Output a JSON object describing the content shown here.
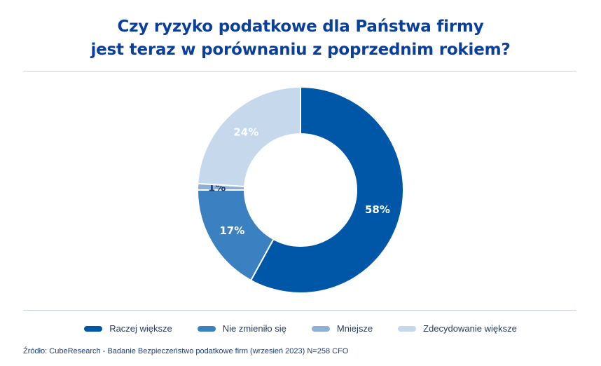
{
  "title_lines": [
    "Czy ryzyko podatkowe dla Państwa firmy",
    "jest teraz w porównaniu z poprzednim rokiem?"
  ],
  "chart_data": {
    "type": "pie",
    "donut": true,
    "categories": [
      "Raczej większe",
      "Nie zmieniło się",
      "Mniejsze",
      "Zdecydowanie większe"
    ],
    "values": [
      58,
      17,
      1,
      24
    ],
    "value_labels": [
      "58%",
      "17%",
      "1%",
      "24%"
    ],
    "colors": [
      "#0057a8",
      "#3b80c0",
      "#8fb0d6",
      "#c5d8ec"
    ],
    "label_colors": [
      "#ffffff",
      "#ffffff",
      "#1f3d7a",
      "#ffffff"
    ],
    "legend_position": "bottom"
  },
  "source": "Źródło: CubeResearch - Badanie Bezpieczeństwo podatkowe firm (wrzesień 2023) N=258 CFO"
}
